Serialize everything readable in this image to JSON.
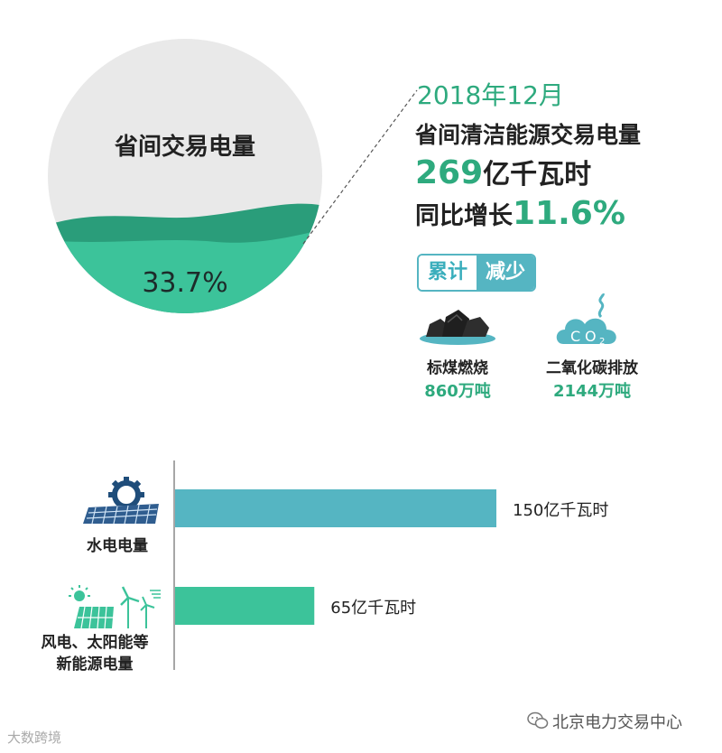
{
  "pie": {
    "title": "省间交易电量",
    "percent_label": "33.7%",
    "fraction": 0.337,
    "colors": {
      "rest": "#e9e9e9",
      "share": "#3cc39a",
      "wave_dark": "#2a9d7a"
    }
  },
  "info": {
    "date": "2018年12月",
    "headline": "省间清洁能源交易电量",
    "amount_number": "269",
    "amount_unit": "亿千瓦时",
    "growth_label": "同比增长",
    "growth_value": "11.6%"
  },
  "badge": {
    "left": "累计",
    "right": "减少"
  },
  "stats": [
    {
      "icon": "coal-icon",
      "label": "标煤燃烧",
      "value": "860万吨"
    },
    {
      "icon": "co2-icon",
      "label": "二氧化碳排放",
      "value": "2144万吨"
    }
  ],
  "co2_icon_text": {
    "c": "C",
    "o": "O",
    "sub": "2"
  },
  "chart_data": {
    "type": "bar",
    "orientation": "horizontal",
    "categories": [
      "水电电量",
      "风电、太阳能等新能源电量"
    ],
    "category_lines": [
      [
        "水电电量"
      ],
      [
        "风电、太阳能等",
        "新能源电量"
      ]
    ],
    "values": [
      150,
      65
    ],
    "value_labels": [
      "150亿千瓦时",
      "65亿千瓦时"
    ],
    "unit": "亿千瓦时",
    "colors": [
      "#55b5c2",
      "#3cc39a"
    ],
    "xlim": [
      0,
      150
    ]
  },
  "watermarks": {
    "right": "北京电力交易中心",
    "left": "大数跨境"
  }
}
